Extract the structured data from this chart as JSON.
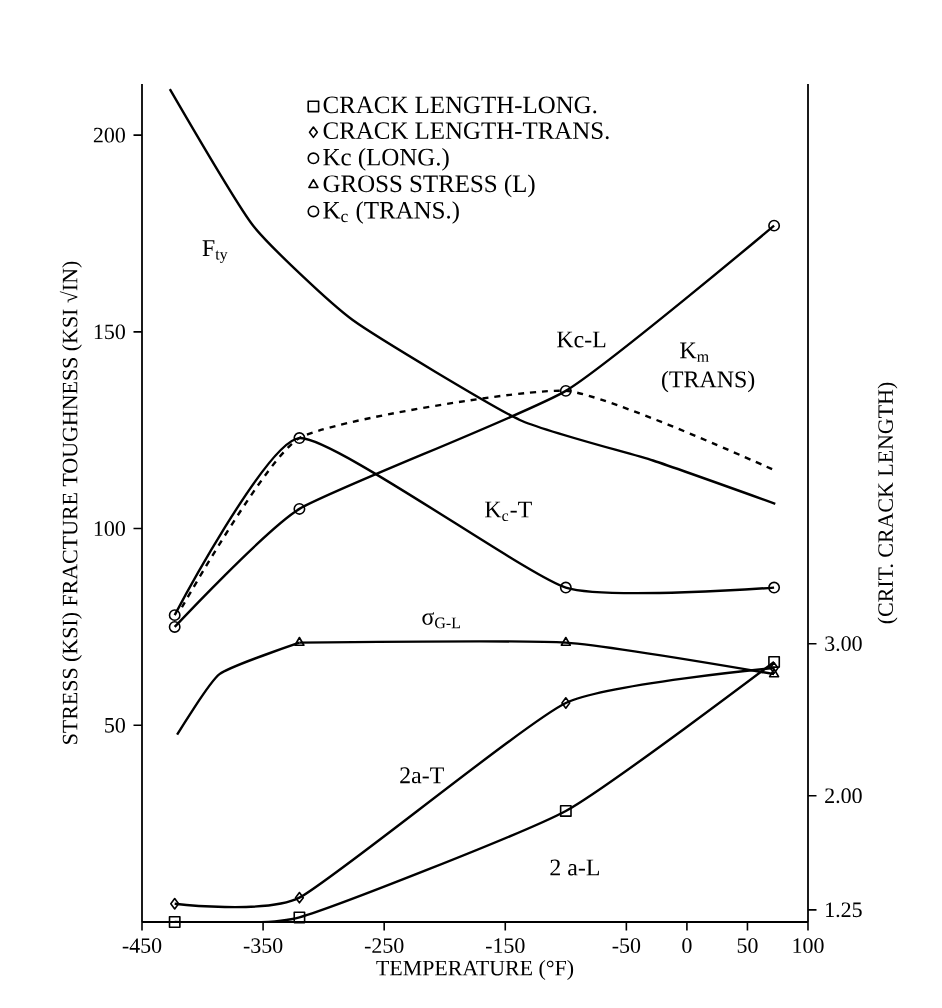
{
  "chart_data": {
    "type": "line",
    "xlabel": "TEMPERATURE (°F)",
    "ylabel": "STRESS (KSI)     FRACTURE TOUGHNESS (KSI √IN)",
    "y2label": "(CRIT. CRACK LENGTH)",
    "xlim": [
      -450,
      100
    ],
    "xticks": [
      -450,
      -350,
      -250,
      -150,
      -50,
      0,
      50,
      100
    ],
    "ylim": [
      0,
      213
    ],
    "yticks": [
      50,
      100,
      150,
      200
    ],
    "y2lim": [
      1.17,
      6.68
    ],
    "y2ticks": [
      {
        "value": 1.25,
        "label": "1.25"
      },
      {
        "value": 2,
        "label": "2.00"
      },
      {
        "value": 3,
        "label": "3.00"
      }
    ],
    "legend": "top",
    "series": [
      {
        "name": "CRACK LENGTH-LONG.",
        "color": "#000000",
        "axis": "y2",
        "marker": "square",
        "line_style": "solid",
        "x": [
          -423,
          -320,
          -100,
          72
        ],
        "values": [
          1.17,
          1.2,
          1.9,
          2.88
        ]
      },
      {
        "name": "CRACK LENGTH-TRANS.",
        "color": "#000000",
        "axis": "y2",
        "marker": "diamond",
        "line_style": "solid",
        "x": [
          -423,
          -320,
          -100,
          72
        ],
        "values": [
          1.29,
          1.33,
          2.61,
          2.84
        ]
      },
      {
        "name": "Kc (LONG.)",
        "color": "#000000",
        "marker": "circle",
        "line_style": "solid",
        "x": [
          -423,
          -320,
          -100,
          72
        ],
        "values": [
          75,
          105,
          135,
          177
        ]
      },
      {
        "name": "GROSS STRESS (L)",
        "color": "#000000",
        "marker": "triangle",
        "line_style": "solid",
        "x": [
          -320,
          -100,
          72
        ],
        "values": [
          71,
          71,
          63
        ]
      },
      {
        "name": "K$_{c}$ (TRANS.)",
        "color": "#000000",
        "marker": "circle",
        "line_style": "solid",
        "x": [
          -423,
          -320,
          -100,
          72
        ],
        "values": [
          78,
          123,
          85,
          85
        ]
      },
      {
        "color": "#000000",
        "marker": "none",
        "line_style": "solid",
        "x": [
          -421,
          -386,
          -320
        ],
        "values": [
          47.6,
          63,
          71
        ]
      },
      {
        "color": "#000000",
        "marker": "none",
        "line_style": "solid",
        "x": [
          -427,
          -358,
          -276,
          -138,
          -28,
          73
        ],
        "values": [
          211.7,
          176.9,
          153,
          127.6,
          117.3,
          106.3
        ]
      },
      {
        "color": "#000000",
        "marker": "none",
        "line_style": "dashed",
        "x": [
          -417,
          -320,
          -100,
          71
        ],
        "values": [
          80,
          123,
          135,
          115
        ]
      }
    ],
    "annotations": [
      "F$_{ty}$",
      "Kc-L",
      "K$_{m}$",
      "(TRANS)",
      "K$_{c}$-T",
      "σ$_{G-L}$",
      "2a-T",
      "2 a-L"
    ]
  }
}
